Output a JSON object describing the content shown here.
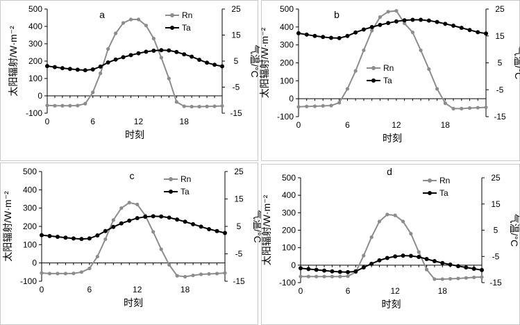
{
  "figure": {
    "background": "#ffffff",
    "frame_color": "#c8c8c8"
  },
  "chart_data": [
    {
      "panel": "a",
      "type": "line",
      "xlabel": "时刻",
      "ylabel_left": "太阳辐射/W·m⁻²",
      "ylabel_right": "气温/°C",
      "xticks": [
        0,
        6,
        12,
        18
      ],
      "xlim": [
        0,
        23
      ],
      "ylim_left": [
        -100,
        500
      ],
      "yticks_left": [
        -100,
        0,
        100,
        200,
        300,
        400,
        500
      ],
      "ylim_right": [
        -15,
        25
      ],
      "yticks_right": [
        -15,
        -5,
        5,
        15,
        25
      ],
      "series": [
        {
          "name": "Rn",
          "axis": "left",
          "color": "#8c8c8c",
          "x": [
            0,
            1,
            2,
            3,
            4,
            5,
            6,
            7,
            8,
            9,
            10,
            11,
            12,
            13,
            14,
            15,
            16,
            17,
            18,
            19,
            20,
            21,
            22,
            23
          ],
          "values": [
            -55,
            -57,
            -57,
            -57,
            -56,
            -45,
            20,
            130,
            270,
            360,
            420,
            440,
            440,
            405,
            330,
            220,
            100,
            -35,
            -60,
            -62,
            -62,
            -61,
            -60,
            -58
          ]
        },
        {
          "name": "Ta",
          "axis": "right",
          "color": "#000000",
          "x": [
            0,
            1,
            2,
            3,
            4,
            5,
            6,
            7,
            8,
            9,
            10,
            11,
            12,
            13,
            14,
            15,
            16,
            17,
            18,
            19,
            20,
            21,
            22,
            23
          ],
          "values": [
            3.1,
            2.7,
            2.3,
            2.0,
            1.7,
            1.5,
            1.8,
            2.9,
            4.5,
            5.6,
            6.5,
            7.3,
            8.0,
            8.6,
            9.0,
            9.2,
            9.1,
            8.5,
            7.6,
            6.7,
            5.5,
            4.4,
            3.6,
            3.0
          ]
        }
      ]
    },
    {
      "panel": "b",
      "type": "line",
      "xlabel": "时刻",
      "ylabel_left": "太阳辐射/W·m⁻²",
      "ylabel_right": "气温/°C",
      "xticks": [
        0,
        6,
        12,
        18
      ],
      "xlim": [
        0,
        23
      ],
      "ylim_left": [
        -100,
        500
      ],
      "yticks_left": [
        -100,
        0,
        100,
        200,
        300,
        400,
        500
      ],
      "ylim_right": [
        -15,
        25
      ],
      "yticks_right": [
        -15,
        -5,
        5,
        15,
        25
      ],
      "series": [
        {
          "name": "Rn",
          "axis": "left",
          "color": "#8c8c8c",
          "x": [
            0,
            1,
            2,
            3,
            4,
            5,
            6,
            7,
            8,
            9,
            10,
            11,
            12,
            13,
            14,
            15,
            16,
            17,
            18,
            19,
            20,
            21,
            22,
            23
          ],
          "values": [
            -45,
            -43,
            -42,
            -40,
            -38,
            -22,
            55,
            155,
            270,
            380,
            455,
            485,
            490,
            420,
            370,
            270,
            165,
            55,
            -25,
            -55,
            -55,
            -52,
            -50,
            -48
          ]
        },
        {
          "name": "Ta",
          "axis": "right",
          "color": "#000000",
          "x": [
            0,
            1,
            2,
            3,
            4,
            5,
            6,
            7,
            8,
            9,
            10,
            11,
            12,
            13,
            14,
            15,
            16,
            17,
            18,
            19,
            20,
            21,
            22,
            23
          ],
          "values": [
            16.0,
            15.5,
            15.0,
            14.6,
            14.3,
            14.2,
            15.0,
            16.3,
            17.4,
            18.3,
            19.1,
            19.8,
            20.4,
            20.8,
            21.0,
            21.0,
            20.7,
            20.2,
            19.5,
            18.8,
            18.0,
            17.2,
            16.4,
            15.9
          ]
        }
      ]
    },
    {
      "panel": "c",
      "type": "line",
      "xlabel": "时刻",
      "ylabel_left": "太阳辐射/W·m⁻²",
      "ylabel_right": "气温/°C",
      "xticks": [
        0,
        6,
        12,
        18
      ],
      "xlim": [
        0,
        23
      ],
      "ylim_left": [
        -100,
        500
      ],
      "yticks_left": [
        -100,
        0,
        100,
        200,
        300,
        400,
        500
      ],
      "ylim_right": [
        -15,
        25
      ],
      "yticks_right": [
        -15,
        -5,
        5,
        15,
        25
      ],
      "series": [
        {
          "name": "Rn",
          "axis": "left",
          "color": "#8c8c8c",
          "x": [
            0,
            1,
            2,
            3,
            4,
            5,
            6,
            7,
            8,
            9,
            10,
            11,
            12,
            13,
            14,
            15,
            16,
            17,
            18,
            19,
            20,
            21,
            22,
            23
          ],
          "values": [
            -55,
            -58,
            -58,
            -58,
            -57,
            -50,
            -30,
            35,
            130,
            235,
            300,
            330,
            320,
            260,
            170,
            75,
            -10,
            -70,
            -75,
            -68,
            -62,
            -60,
            -58,
            -55
          ]
        },
        {
          "name": "Ta",
          "axis": "right",
          "color": "#000000",
          "x": [
            0,
            1,
            2,
            3,
            4,
            5,
            6,
            7,
            8,
            9,
            10,
            11,
            12,
            13,
            14,
            15,
            16,
            17,
            18,
            19,
            20,
            21,
            22,
            23
          ],
          "values": [
            1.8,
            1.5,
            1.2,
            0.9,
            0.6,
            0.4,
            0.6,
            1.7,
            3.3,
            4.8,
            6.1,
            7.1,
            8.0,
            8.5,
            8.7,
            8.6,
            8.2,
            7.5,
            6.7,
            5.8,
            4.9,
            4.0,
            3.3,
            2.6
          ]
        }
      ]
    },
    {
      "panel": "d",
      "type": "line",
      "xlabel": "时刻",
      "ylabel_left": "太阳辐射/W·m⁻²",
      "ylabel_right": "气温/°C",
      "xticks": [
        0,
        6,
        12,
        18
      ],
      "xlim": [
        0,
        23
      ],
      "ylim_left": [
        -100,
        500
      ],
      "yticks_left": [
        -100,
        0,
        100,
        200,
        300,
        400,
        500
      ],
      "ylim_right": [
        -15,
        25
      ],
      "yticks_right": [
        -15,
        -5,
        5,
        15,
        25
      ],
      "series": [
        {
          "name": "Rn",
          "axis": "left",
          "color": "#8c8c8c",
          "x": [
            0,
            1,
            2,
            3,
            4,
            5,
            6,
            7,
            8,
            9,
            10,
            11,
            12,
            13,
            14,
            15,
            16,
            17,
            18,
            19,
            20,
            21,
            22,
            23
          ],
          "values": [
            -65,
            -65,
            -65,
            -65,
            -65,
            -65,
            -63,
            -40,
            55,
            160,
            250,
            290,
            285,
            250,
            180,
            75,
            -25,
            -80,
            -80,
            -78,
            -76,
            -73,
            -70,
            -68
          ]
        },
        {
          "name": "Ta",
          "axis": "right",
          "color": "#000000",
          "x": [
            0,
            1,
            2,
            3,
            4,
            5,
            6,
            7,
            8,
            9,
            10,
            11,
            12,
            13,
            14,
            15,
            16,
            17,
            18,
            19,
            20,
            21,
            22,
            23
          ],
          "values": [
            -9.5,
            -9.8,
            -10.1,
            -10.4,
            -10.7,
            -10.9,
            -11.0,
            -10.7,
            -9.2,
            -7.8,
            -6.5,
            -5.6,
            -5.0,
            -4.7,
            -4.8,
            -5.2,
            -6.0,
            -6.8,
            -7.5,
            -8.1,
            -8.7,
            -9.2,
            -9.7,
            -10.2
          ]
        }
      ]
    }
  ]
}
